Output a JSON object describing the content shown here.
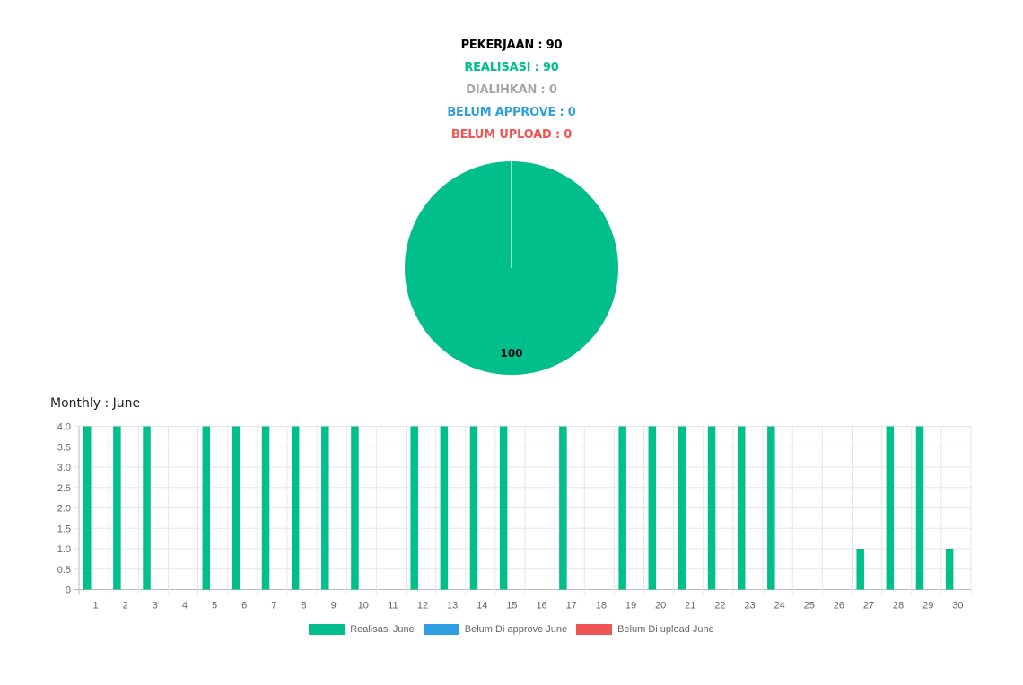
{
  "summary": {
    "pekerjaan": "PEKERJAAN : 90",
    "realisasi": "REALISASI : 90",
    "dialihkan": "DIALIHKAN : 0",
    "belum_approve": "BELUM APPROVE : 0",
    "belum_upload": "BELUM UPLOAD : 0"
  },
  "colors": {
    "pekerjaan": "#000000",
    "realisasi": "#00BF8A",
    "dialihkan": "#A6A6A6",
    "belum_approve": "#2E9FE0",
    "belum_upload": "#F05556"
  },
  "chart_data": [
    {
      "type": "pie",
      "slices": [
        {
          "name": "Realisasi",
          "value": 100,
          "color": "#00BF8A"
        }
      ],
      "data_labels": [
        "100"
      ]
    },
    {
      "type": "bar",
      "title": "Monthly : June",
      "categories": [
        "1",
        "2",
        "3",
        "4",
        "5",
        "6",
        "7",
        "8",
        "9",
        "10",
        "11",
        "12",
        "13",
        "14",
        "15",
        "16",
        "17",
        "18",
        "19",
        "20",
        "21",
        "22",
        "23",
        "24",
        "25",
        "26",
        "27",
        "28",
        "29",
        "30"
      ],
      "series": [
        {
          "name": "Realisasi June",
          "color": "#00BF8A",
          "values": [
            4,
            4,
            4,
            0,
            4,
            4,
            4,
            4,
            4,
            4,
            0,
            4,
            4,
            4,
            4,
            0,
            4,
            0,
            4,
            4,
            4,
            4,
            4,
            4,
            0,
            0,
            1,
            4,
            4,
            1
          ]
        },
        {
          "name": "Belum Di approve June",
          "color": "#2E9FE0",
          "values": [
            0,
            0,
            0,
            0,
            0,
            0,
            0,
            0,
            0,
            0,
            0,
            0,
            0,
            0,
            0,
            0,
            0,
            0,
            0,
            0,
            0,
            0,
            0,
            0,
            0,
            0,
            0,
            0,
            0,
            0
          ]
        },
        {
          "name": "Belum Di upload June",
          "color": "#F05556",
          "values": [
            0,
            0,
            0,
            0,
            0,
            0,
            0,
            0,
            0,
            0,
            0,
            0,
            0,
            0,
            0,
            0,
            0,
            0,
            0,
            0,
            0,
            0,
            0,
            0,
            0,
            0,
            0,
            0,
            0,
            0
          ]
        }
      ],
      "ylim": [
        0,
        4
      ],
      "yticks": [
        "0",
        "0.5",
        "1.0",
        "1.5",
        "2.0",
        "2.5",
        "3.0",
        "3.5",
        "4.0"
      ],
      "grid": true,
      "legend": "bottom"
    }
  ]
}
